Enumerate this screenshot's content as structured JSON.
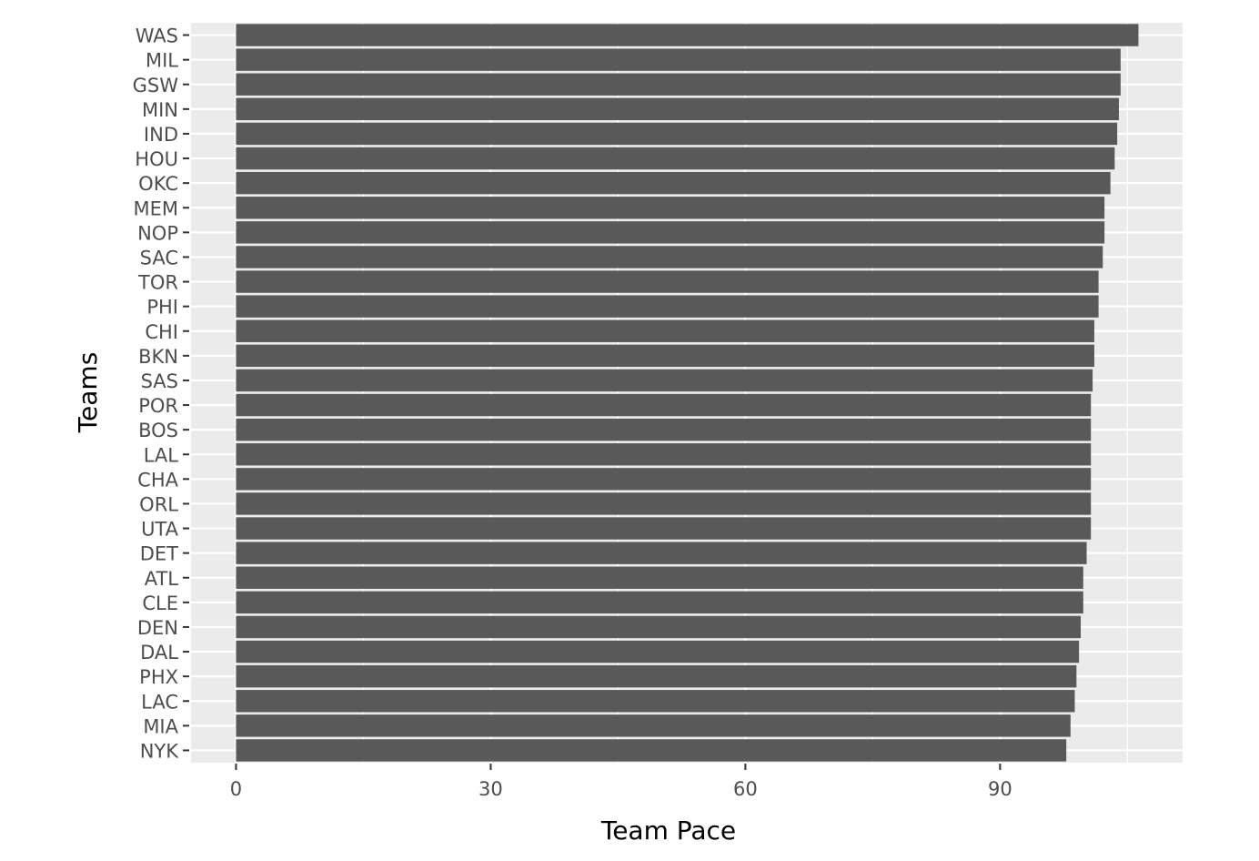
{
  "chart_data": {
    "type": "bar",
    "orientation": "horizontal",
    "title": "",
    "xlabel": "Team Pace",
    "ylabel": "Teams",
    "xlim": [
      -5.3,
      111.5
    ],
    "xticks": [
      0,
      30,
      60,
      90
    ],
    "grid": true,
    "bar_color": "#595959",
    "panel_background": "#ebebeb",
    "categories": [
      "WAS",
      "MIL",
      "GSW",
      "MIN",
      "IND",
      "HOU",
      "OKC",
      "MEM",
      "NOP",
      "SAC",
      "TOR",
      "PHI",
      "CHI",
      "BKN",
      "SAS",
      "POR",
      "BOS",
      "LAL",
      "CHA",
      "ORL",
      "UTA",
      "DET",
      "ATL",
      "CLE",
      "DEN",
      "DAL",
      "PHX",
      "LAC",
      "MIA",
      "NYK"
    ],
    "values": [
      106.3,
      104.2,
      104.2,
      104.0,
      103.8,
      103.5,
      103.0,
      102.3,
      102.3,
      102.1,
      101.6,
      101.6,
      101.1,
      101.1,
      100.9,
      100.7,
      100.7,
      100.7,
      100.7,
      100.7,
      100.7,
      100.2,
      99.8,
      99.8,
      99.5,
      99.3,
      99.0,
      98.8,
      98.3,
      97.8
    ]
  }
}
